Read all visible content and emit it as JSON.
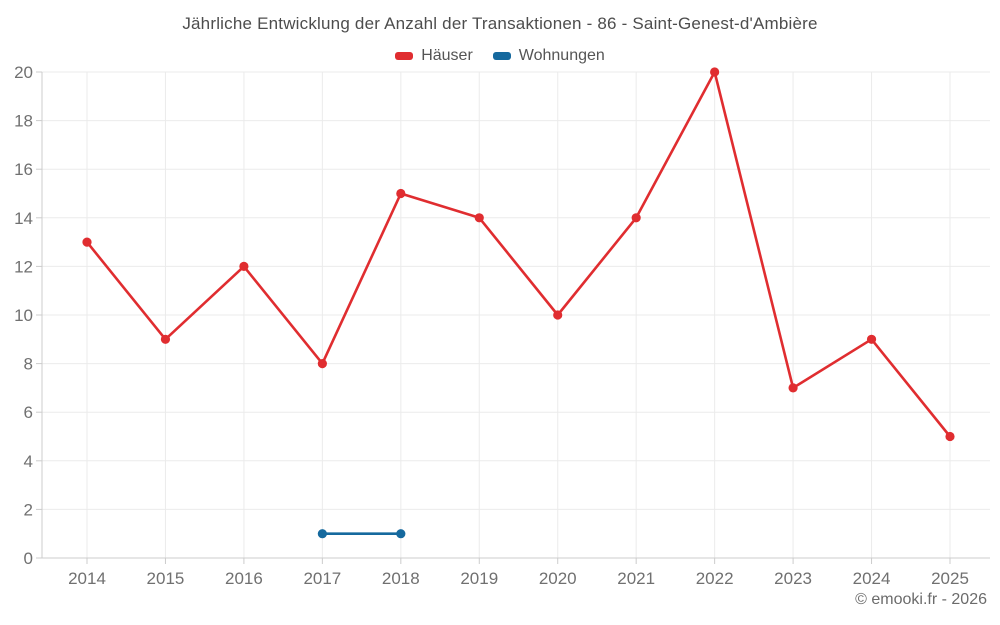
{
  "chart_data": {
    "type": "line",
    "title": "Jährliche Entwicklung der Anzahl der Transaktionen - 86 - Saint-Genest-d'Ambière",
    "xlabel": "",
    "ylabel": "",
    "categories": [
      "2014",
      "2015",
      "2016",
      "2017",
      "2018",
      "2019",
      "2020",
      "2021",
      "2022",
      "2023",
      "2024",
      "2025"
    ],
    "ylim": [
      0,
      20
    ],
    "ytick_step": 2,
    "yticks": [
      0,
      2,
      4,
      6,
      8,
      10,
      12,
      14,
      16,
      18,
      20
    ],
    "grid": true,
    "legend_position": "top-center",
    "series": [
      {
        "name": "Häuser",
        "color": "#e02d30",
        "x": [
          2014,
          2015,
          2016,
          2017,
          2018,
          2019,
          2020,
          2021,
          2022,
          2023,
          2024,
          2025
        ],
        "values": [
          13,
          9,
          12,
          8,
          15,
          14,
          10,
          14,
          20,
          7,
          9,
          5
        ]
      },
      {
        "name": "Wohnungen",
        "color": "#15699e",
        "x": [
          2017,
          2018
        ],
        "values": [
          1,
          1
        ]
      }
    ]
  },
  "footer": {
    "text": "© emooki.fr - 2026"
  }
}
